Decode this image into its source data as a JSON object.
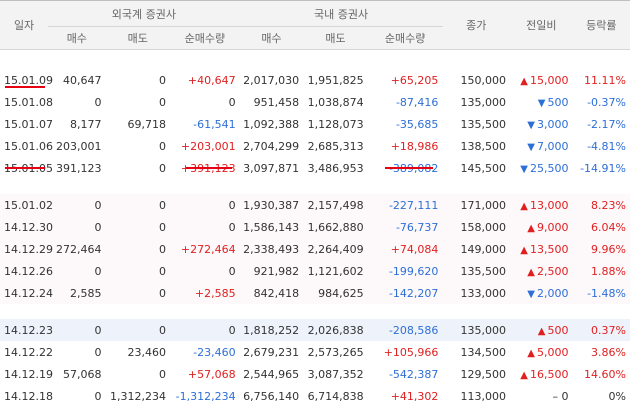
{
  "header": {
    "date": "일자",
    "foreign": "외국계 증권사",
    "domestic": "국내 증권사",
    "close": "종가",
    "change": "전일비",
    "rate": "등락률",
    "buy": "매수",
    "sell": "매도",
    "net": "순매수량"
  },
  "rows": [
    {
      "group": "a",
      "date": "15.01.09",
      "fb": "40,647",
      "fs": "0",
      "fn": "+40,647",
      "fnc": "pos",
      "db": "2,017,030",
      "ds": "1,951,825",
      "dn": "+65,205",
      "dnc": "pos",
      "close": "150,000",
      "dir": "up",
      "chg": "15,000",
      "rate": "11.11%",
      "rc": "pos"
    },
    {
      "group": "a",
      "date": "15.01.08",
      "fb": "0",
      "fs": "0",
      "fn": "0",
      "fnc": "dim",
      "db": "951,458",
      "ds": "1,038,874",
      "dn": "-87,416",
      "dnc": "neg",
      "close": "135,000",
      "dir": "down",
      "chg": "500",
      "rate": "-0.37%",
      "rc": "neg"
    },
    {
      "group": "a",
      "date": "15.01.07",
      "fb": "8,177",
      "fs": "69,718",
      "fn": "-61,541",
      "fnc": "neg",
      "db": "1,092,388",
      "ds": "1,128,073",
      "dn": "-35,685",
      "dnc": "neg",
      "close": "135,500",
      "dir": "down",
      "chg": "3,000",
      "rate": "-2.17%",
      "rc": "neg"
    },
    {
      "group": "a",
      "date": "15.01.06",
      "fb": "203,001",
      "fs": "0",
      "fn": "+203,001",
      "fnc": "pos",
      "db": "2,704,299",
      "ds": "2,685,313",
      "dn": "+18,986",
      "dnc": "pos",
      "close": "138,500",
      "dir": "down",
      "chg": "7,000",
      "rate": "-4.81%",
      "rc": "neg"
    },
    {
      "group": "a",
      "date": "15.01.05",
      "fb": "391,123",
      "fs": "0",
      "fn": "+391,123",
      "fnc": "pos",
      "db": "3,097,871",
      "ds": "3,486,953",
      "dn": "-389,082",
      "dnc": "neg",
      "close": "145,500",
      "dir": "down",
      "chg": "25,500",
      "rate": "-14.91%",
      "rc": "neg"
    },
    {
      "group": "b",
      "date": "15.01.02",
      "fb": "0",
      "fs": "0",
      "fn": "0",
      "fnc": "dim",
      "db": "1,930,387",
      "ds": "2,157,498",
      "dn": "-227,111",
      "dnc": "neg",
      "close": "171,000",
      "dir": "up",
      "chg": "13,000",
      "rate": "8.23%",
      "rc": "pos"
    },
    {
      "group": "b",
      "date": "14.12.30",
      "fb": "0",
      "fs": "0",
      "fn": "0",
      "fnc": "dim",
      "db": "1,586,143",
      "ds": "1,662,880",
      "dn": "-76,737",
      "dnc": "neg",
      "close": "158,000",
      "dir": "up",
      "chg": "9,000",
      "rate": "6.04%",
      "rc": "pos"
    },
    {
      "group": "b",
      "date": "14.12.29",
      "fb": "272,464",
      "fs": "0",
      "fn": "+272,464",
      "fnc": "pos",
      "db": "2,338,493",
      "ds": "2,264,409",
      "dn": "+74,084",
      "dnc": "pos",
      "close": "149,000",
      "dir": "up",
      "chg": "13,500",
      "rate": "9.96%",
      "rc": "pos"
    },
    {
      "group": "b",
      "date": "14.12.26",
      "fb": "0",
      "fs": "0",
      "fn": "0",
      "fnc": "dim",
      "db": "921,982",
      "ds": "1,121,602",
      "dn": "-199,620",
      "dnc": "neg",
      "close": "135,500",
      "dir": "up",
      "chg": "2,500",
      "rate": "1.88%",
      "rc": "pos"
    },
    {
      "group": "b",
      "date": "14.12.24",
      "fb": "2,585",
      "fs": "0",
      "fn": "+2,585",
      "fnc": "pos",
      "db": "842,418",
      "ds": "984,625",
      "dn": "-142,207",
      "dnc": "neg",
      "close": "133,000",
      "dir": "down",
      "chg": "2,000",
      "rate": "-1.48%",
      "rc": "neg"
    },
    {
      "group": "c",
      "date": "14.12.23",
      "fb": "0",
      "fs": "0",
      "fn": "0",
      "fnc": "dim",
      "db": "1,818,252",
      "ds": "2,026,838",
      "dn": "-208,586",
      "dnc": "neg",
      "close": "135,000",
      "dir": "up",
      "chg": "500",
      "rate": "0.37%",
      "rc": "pos",
      "hl": true
    },
    {
      "group": "c",
      "date": "14.12.22",
      "fb": "0",
      "fs": "23,460",
      "fn": "-23,460",
      "fnc": "neg",
      "db": "2,679,231",
      "ds": "2,573,265",
      "dn": "+105,966",
      "dnc": "pos",
      "close": "134,500",
      "dir": "up",
      "chg": "5,000",
      "rate": "3.86%",
      "rc": "pos"
    },
    {
      "group": "c",
      "date": "14.12.19",
      "fb": "57,068",
      "fs": "0",
      "fn": "+57,068",
      "fnc": "pos",
      "db": "2,544,965",
      "ds": "3,087,352",
      "dn": "-542,387",
      "dnc": "neg",
      "close": "129,500",
      "dir": "up",
      "chg": "16,500",
      "rate": "14.60%",
      "rc": "pos"
    },
    {
      "group": "c",
      "date": "14.12.18",
      "fb": "0",
      "fs": "1,312,234",
      "fn": "-1,312,234",
      "fnc": "neg",
      "db": "6,756,140",
      "ds": "6,714,838",
      "dn": "+41,302",
      "dnc": "pos",
      "close": "113,000",
      "dir": "none",
      "chg": "0",
      "rate": "0%",
      "rc": "dim"
    }
  ],
  "colors": {
    "up": "#e02020",
    "down": "#2d6fd7",
    "annotation": "#e60012"
  }
}
